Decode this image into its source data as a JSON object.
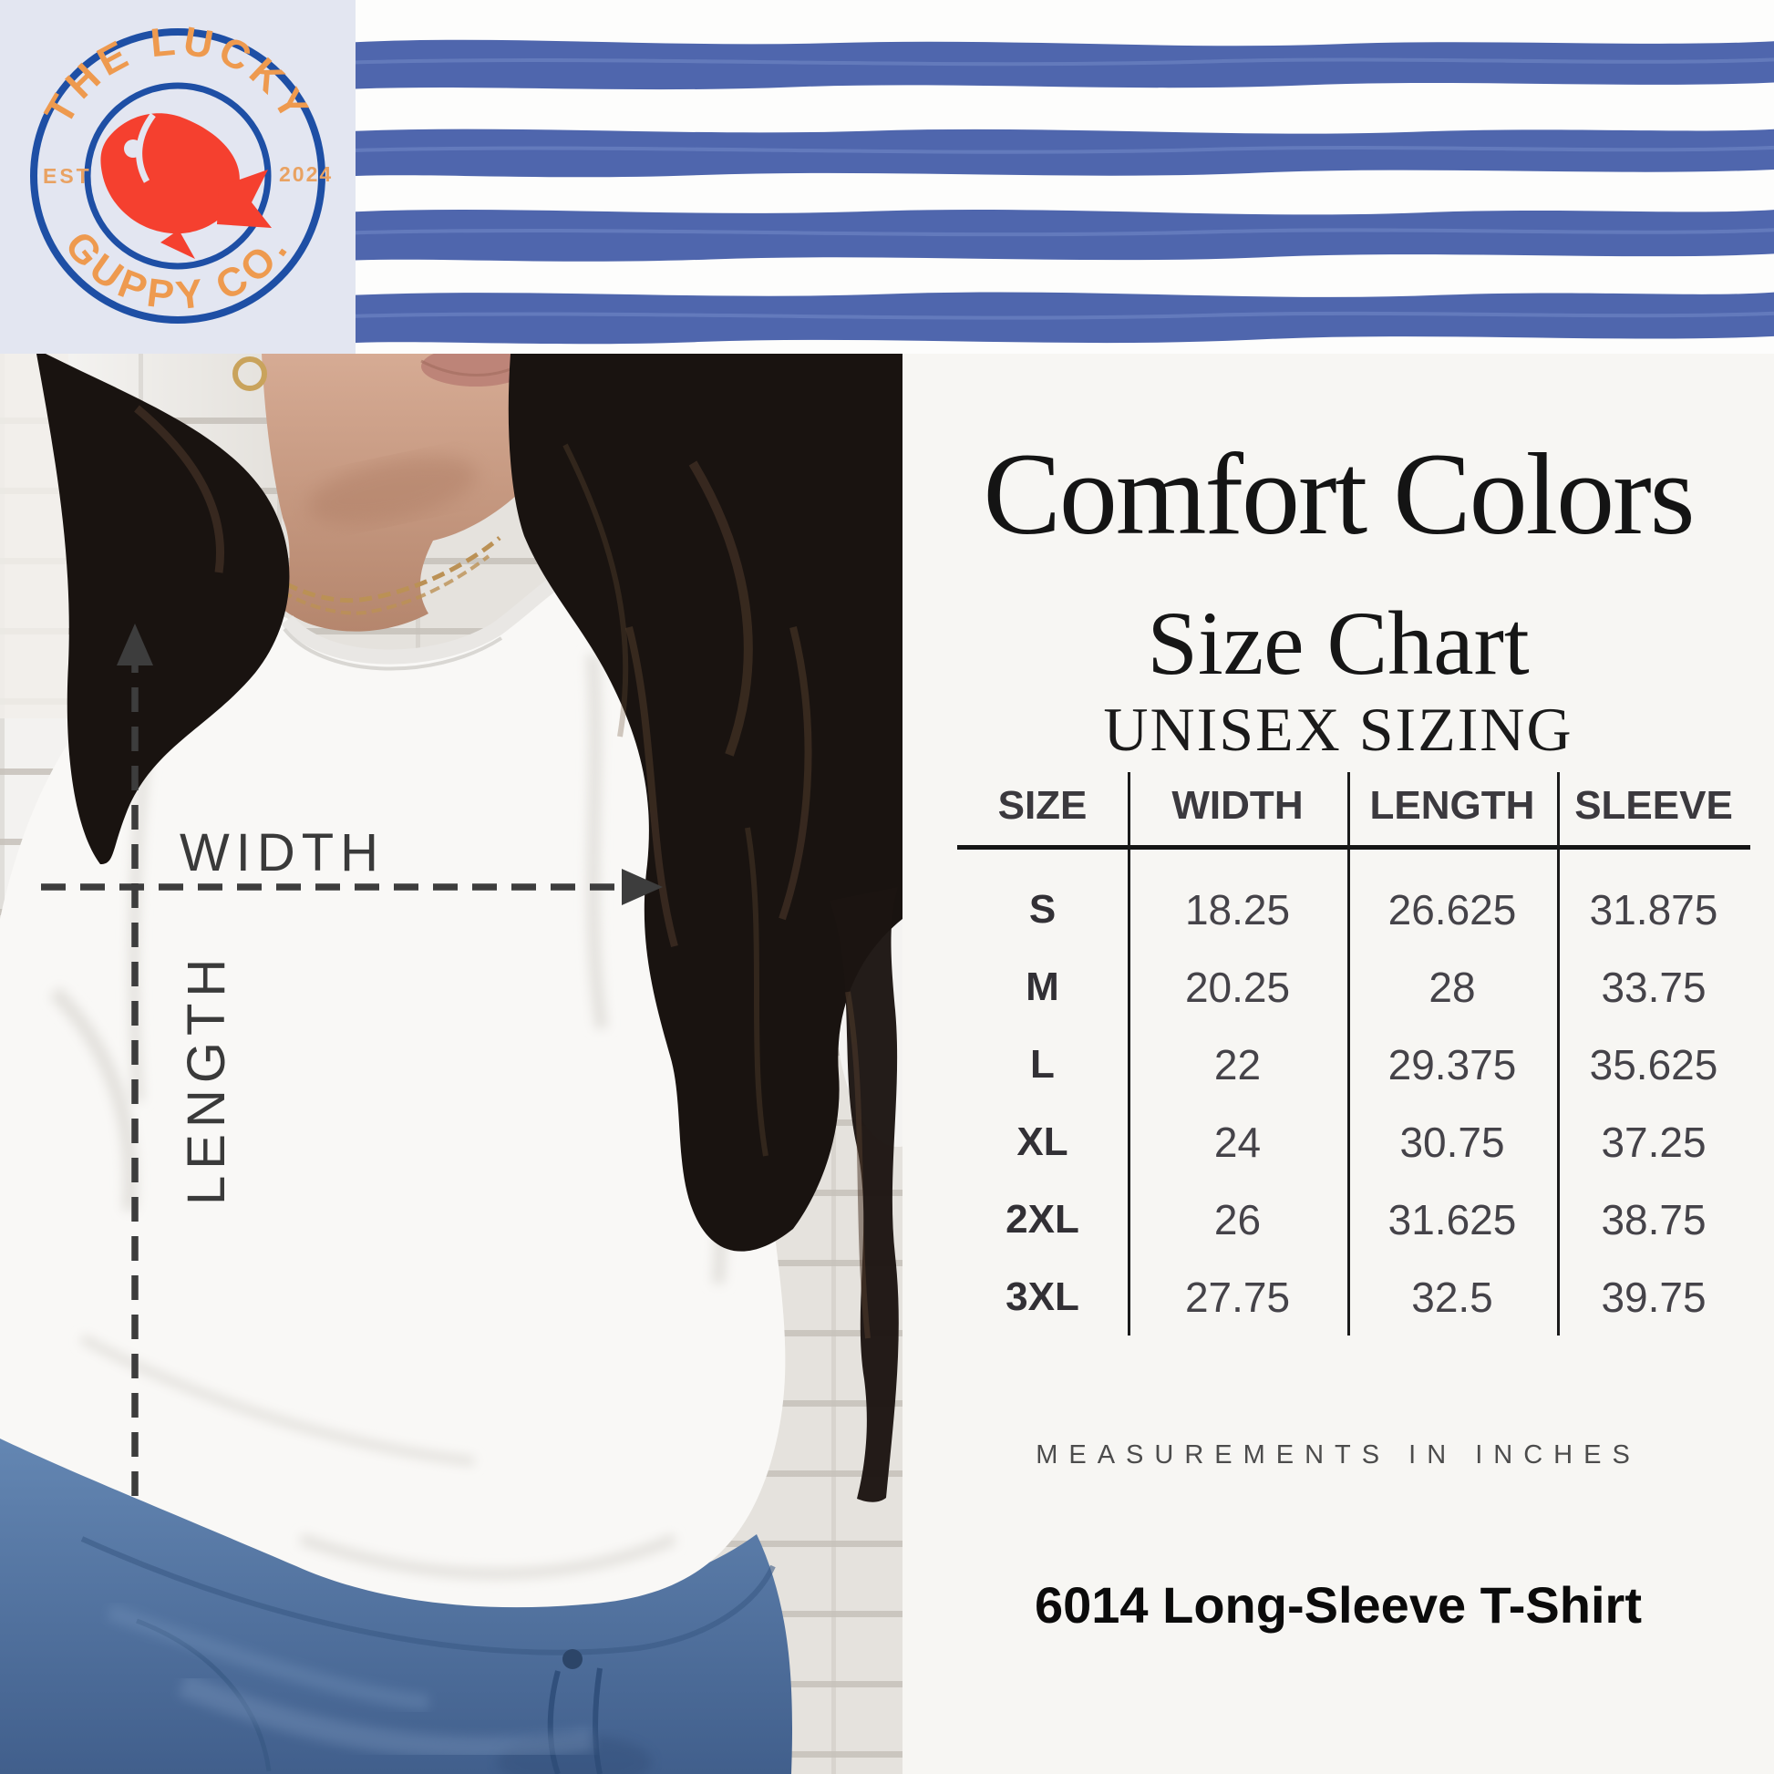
{
  "logo": {
    "brand_top": "THE LUCKY",
    "brand_bottom": "GUPPY CO.",
    "est": "EST",
    "year": "2024",
    "icon": "fish-icon",
    "colors": {
      "ring_blue": "#1e4fa5",
      "text_orange": "#ee9a4f",
      "fish_red": "#f5402f",
      "background": "#e3e6f1"
    }
  },
  "banner": {
    "stripe_color": "#4f66ad",
    "background": "#fdfdfc"
  },
  "photo": {
    "description": "woman in white long-sleeve tee against white brick wall",
    "measure_labels": {
      "width": "WIDTH",
      "length": "LENGTH"
    },
    "arrow_color": "#3d3d3d"
  },
  "size_panel": {
    "title": "Comfort Colors",
    "subtitle": "Size Chart",
    "subheading": "UNISEX SIZING",
    "footnote": "MEASUREMENTS IN INCHES",
    "product": "6014 Long-Sleeve T-Shirt",
    "background": "#f7f6f3"
  },
  "chart_data": {
    "type": "table",
    "title": "Comfort Colors Size Chart",
    "subtitle": "UNISEX SIZING",
    "units": "inches",
    "columns": [
      "SIZE",
      "WIDTH",
      "LENGTH",
      "SLEEVE"
    ],
    "rows": [
      [
        "S",
        "18.25",
        "26.625",
        "31.875"
      ],
      [
        "M",
        "20.25",
        "28",
        "33.75"
      ],
      [
        "L",
        "22",
        "29.375",
        "35.625"
      ],
      [
        "XL",
        "24",
        "30.75",
        "37.25"
      ],
      [
        "2XL",
        "26",
        "31.625",
        "38.75"
      ],
      [
        "3XL",
        "27.75",
        "32.5",
        "39.75"
      ]
    ]
  }
}
